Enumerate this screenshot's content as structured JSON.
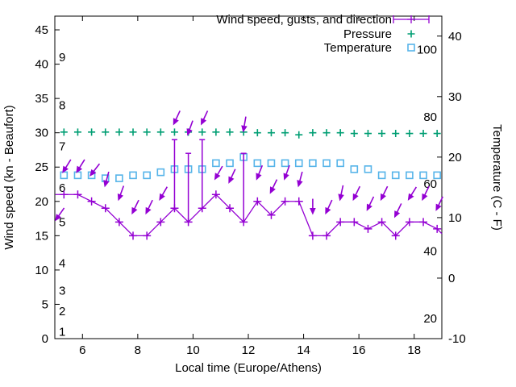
{
  "figure": {
    "legend": [
      {
        "id": "wind",
        "label": "Wind speed, gusts, and direction",
        "marker": "errorbar",
        "color": "#9400d3"
      },
      {
        "id": "pressure",
        "label": "Pressure",
        "marker": "plus",
        "color": "#009e73"
      },
      {
        "id": "temperature",
        "label": "Temperature",
        "marker": "square",
        "color": "#56b4e9"
      }
    ],
    "x_axis": {
      "label": "Local time (Europe/Athens)",
      "min": 5,
      "max": 19,
      "ticks": [
        6,
        8,
        10,
        12,
        14,
        16,
        18
      ]
    },
    "y_left": {
      "label": "Wind speed (kn - Beaufort)",
      "min": 0,
      "max": 47,
      "ticks": [
        0,
        5,
        10,
        15,
        20,
        25,
        30,
        35,
        40,
        45
      ],
      "beaufort_labels": [
        {
          "text": "1",
          "kn": 1
        },
        {
          "text": "2",
          "kn": 4
        },
        {
          "text": "3",
          "kn": 7
        },
        {
          "text": "4",
          "kn": 11
        },
        {
          "text": "5",
          "kn": 17
        },
        {
          "text": "6",
          "kn": 22
        },
        {
          "text": "7",
          "kn": 28
        },
        {
          "text": "8",
          "kn": 34
        },
        {
          "text": "9",
          "kn": 41
        }
      ]
    },
    "y_right": {
      "label": "Temperature (C - F)",
      "min": -10,
      "max": 43.3,
      "ticks": [
        -10,
        0,
        10,
        20,
        30,
        40
      ],
      "fahrenheit_labels": [
        {
          "text": "20",
          "f": 20
        },
        {
          "text": "40",
          "f": 40
        },
        {
          "text": "60",
          "f": 60
        },
        {
          "text": "80",
          "f": 80
        },
        {
          "text": "100",
          "f": 100
        }
      ]
    },
    "colors": {
      "wind": "#9400d3",
      "pressure": "#009e73",
      "temperature": "#56b4e9",
      "axis": "#000000"
    }
  },
  "chart_data": {
    "type": "line",
    "title": "",
    "xlabel": "Local time (Europe/Athens)",
    "ylabel_left": "Wind speed (kn - Beaufort)",
    "ylabel_right": "Temperature (C - F)",
    "x_range": [
      5,
      19
    ],
    "y_left_range": [
      0,
      47
    ],
    "y_right_range": [
      -10,
      43.3
    ],
    "grid": false,
    "legend_position": "top-right-inside",
    "x_hours": [
      5.33,
      5.83,
      6.33,
      6.83,
      7.33,
      7.83,
      8.33,
      8.83,
      9.33,
      9.83,
      10.33,
      10.83,
      11.33,
      11.83,
      12.33,
      12.83,
      13.33,
      13.83,
      14.33,
      14.83,
      15.33,
      15.83,
      16.33,
      16.83,
      17.33,
      17.83,
      18.33,
      18.83
    ],
    "series": [
      {
        "name": "Wind speed, gusts, and direction",
        "axis": "left",
        "unit": "kn",
        "style": "line+markers+gustbars+arrows",
        "color": "#9400d3",
        "values": [
          21,
          21,
          20,
          19,
          17,
          15,
          15,
          17,
          19,
          17,
          19,
          21,
          19,
          17,
          20,
          18,
          20,
          20,
          15,
          15,
          17,
          17,
          16,
          17,
          15,
          17,
          17,
          16
        ],
        "gusts": [
          21,
          21,
          20,
          19,
          17,
          15,
          15,
          17,
          29,
          27,
          29,
          21,
          19,
          27,
          20,
          18,
          20,
          20,
          15,
          15,
          17,
          17,
          16,
          17,
          15,
          17,
          17,
          16
        ],
        "arrow_kn": [
          24.5,
          24.5,
          24,
          22.5,
          20.5,
          18.5,
          18.5,
          20.5,
          31.5,
          30,
          31.5,
          23.5,
          23,
          30.5,
          23.5,
          21.5,
          23.5,
          22.5,
          18.5,
          18.5,
          20.5,
          20.5,
          19,
          20.5,
          18,
          20.5,
          20.5,
          19
        ],
        "arrow_tilt_deg": [
          32,
          32,
          38,
          15,
          20,
          26,
          26,
          30,
          25,
          20,
          25,
          30,
          25,
          10,
          22,
          26,
          20,
          15,
          0,
          25,
          12,
          26,
          26,
          26,
          26,
          32,
          26,
          26
        ]
      },
      {
        "name": "Pressure",
        "axis": "left",
        "unit": "inHg",
        "style": "points",
        "color": "#009e73",
        "values": [
          30.1,
          30.1,
          30.1,
          30.1,
          30.1,
          30.1,
          30.1,
          30.1,
          30.1,
          30.1,
          30.1,
          30.1,
          30.1,
          30.1,
          30.0,
          30.0,
          30.0,
          29.7,
          30.0,
          30.0,
          30.0,
          29.9,
          29.9,
          29.9,
          29.9,
          29.9,
          29.9,
          29.9
        ]
      },
      {
        "name": "Temperature",
        "axis": "right",
        "unit": "C",
        "style": "points",
        "color": "#56b4e9",
        "values": [
          17,
          17,
          17,
          16.5,
          16.5,
          17,
          17,
          17.5,
          18,
          18,
          18,
          19,
          19,
          20,
          19,
          19,
          19,
          19,
          19,
          19,
          19,
          18,
          18,
          17,
          17,
          17,
          17,
          17
        ]
      }
    ],
    "edge_stubs": {
      "lead_from_x": 5.02,
      "lead_kn": 21,
      "tail_to_x": 19.0,
      "tail_kn": 15.3,
      "clipped_arrow": {
        "x": 5.07,
        "kn": 17.5,
        "tilt": 35
      }
    }
  }
}
